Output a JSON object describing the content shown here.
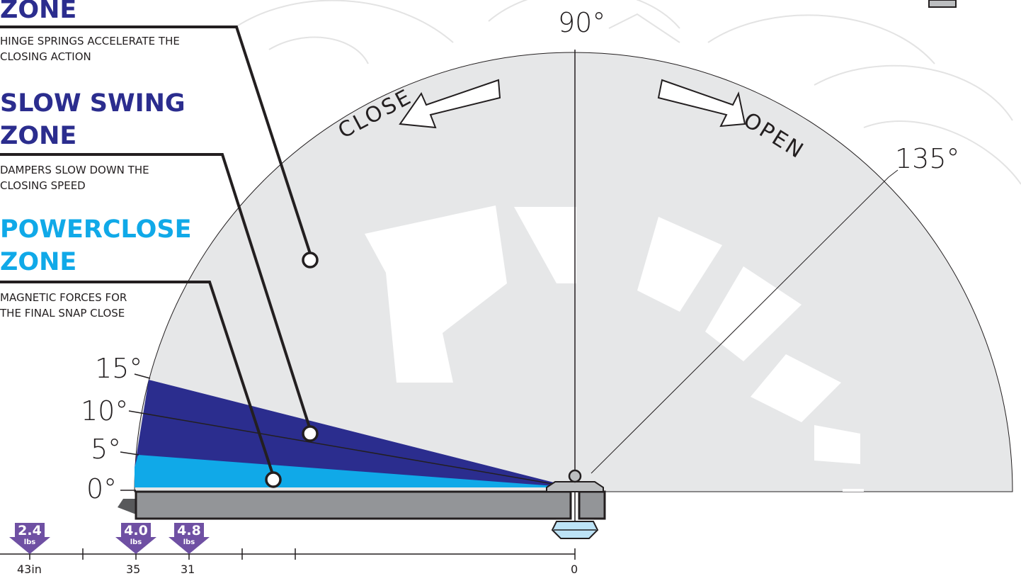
{
  "zones": [
    {
      "title_line2": "ZONE",
      "description": [
        "HINGE SPRINGS ACCELERATE THE",
        "CLOSING ACTION"
      ]
    },
    {
      "title_line1": "SLOW SWING",
      "title_line2": "ZONE",
      "description": [
        "DAMPERS SLOW DOWN THE",
        "CLOSING SPEED"
      ]
    },
    {
      "title_line1": "POWERCLOSE",
      "title_line2": "ZONE",
      "description": [
        "MAGNETIC FORCES FOR",
        "THE FINAL SNAP CLOSE"
      ]
    }
  ],
  "angles": {
    "deg90": "90°",
    "deg135": "135°",
    "deg15": "15°",
    "deg10": "10°",
    "deg5": "5°",
    "deg0": "0°"
  },
  "arrows": {
    "close": "CLOSE",
    "open": "OPEN"
  },
  "forces": [
    {
      "value": "2.4",
      "unit": "lbs"
    },
    {
      "value": "4.0",
      "unit": "lbs"
    },
    {
      "value": "4.8",
      "unit": "lbs"
    }
  ],
  "scale": {
    "labels": [
      "43in",
      "35",
      "31",
      "0"
    ]
  },
  "colors": {
    "slow_swing": "#2b2d8e",
    "powerclose": "#10a9e8",
    "arc_fill": "#e6e7e8",
    "door": "#939598",
    "badge": "#6f50a3"
  }
}
